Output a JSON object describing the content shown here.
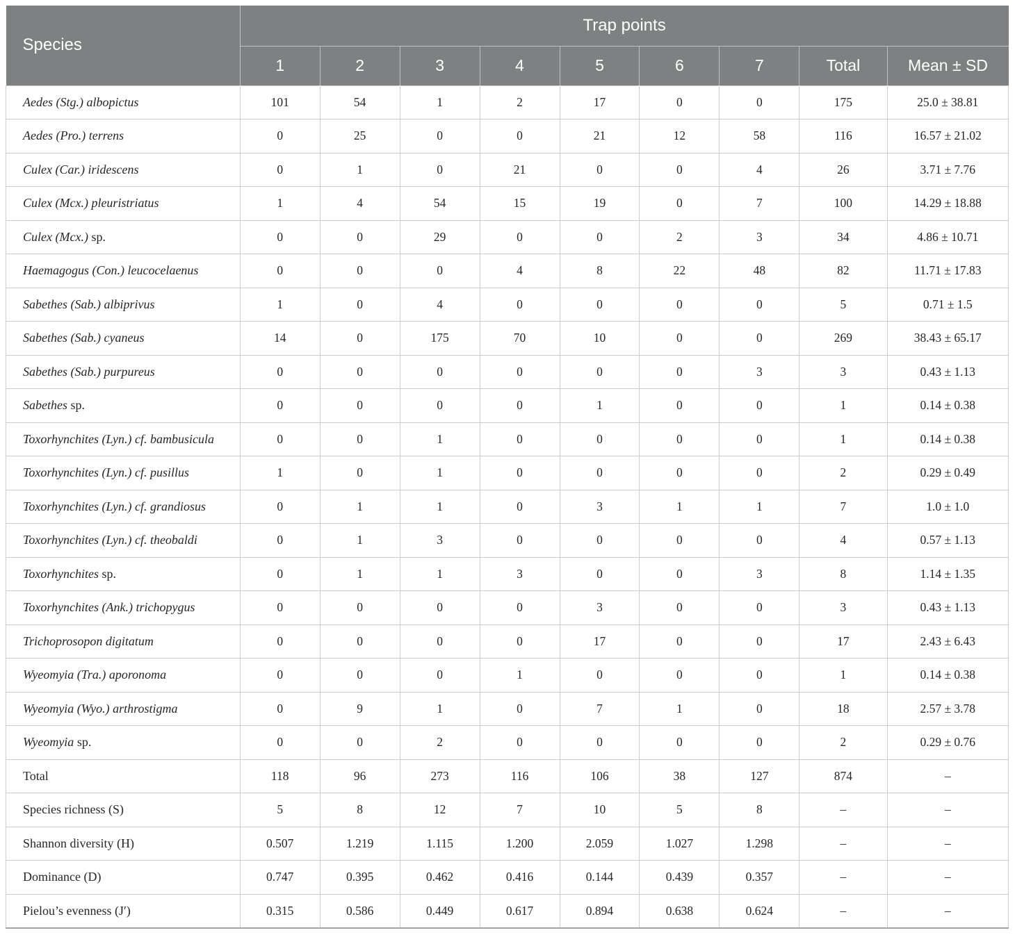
{
  "table": {
    "header": {
      "species_label": "Species",
      "trap_points_label": "Trap points",
      "trap_columns": [
        "1",
        "2",
        "3",
        "4",
        "5",
        "6",
        "7"
      ],
      "total_label": "Total",
      "mean_sd_label": "Mean ± SD"
    },
    "rows": [
      {
        "species_italic": "Aedes (Stg.) albopictus",
        "species_roman": "",
        "counts": [
          "101",
          "54",
          "1",
          "2",
          "17",
          "0",
          "0"
        ],
        "total": "175",
        "mean_sd": "25.0 ± 38.81"
      },
      {
        "species_italic": "Aedes (Pro.) terrens",
        "species_roman": "",
        "counts": [
          "0",
          "25",
          "0",
          "0",
          "21",
          "12",
          "58"
        ],
        "total": "116",
        "mean_sd": "16.57 ± 21.02"
      },
      {
        "species_italic": "Culex (Car.) iridescens",
        "species_roman": "",
        "counts": [
          "0",
          "1",
          "0",
          "21",
          "0",
          "0",
          "4"
        ],
        "total": "26",
        "mean_sd": "3.71 ± 7.76"
      },
      {
        "species_italic": "Culex (Mcx.) pleuristriatus",
        "species_roman": "",
        "counts": [
          "1",
          "4",
          "54",
          "15",
          "19",
          "0",
          "7"
        ],
        "total": "100",
        "mean_sd": "14.29 ± 18.88"
      },
      {
        "species_italic": "Culex (Mcx.)",
        "species_roman": "sp.",
        "counts": [
          "0",
          "0",
          "29",
          "0",
          "0",
          "2",
          "3"
        ],
        "total": "34",
        "mean_sd": "4.86 ± 10.71"
      },
      {
        "species_italic": "Haemagogus (Con.) leucocelaenus",
        "species_roman": "",
        "counts": [
          "0",
          "0",
          "0",
          "4",
          "8",
          "22",
          "48"
        ],
        "total": "82",
        "mean_sd": "11.71 ± 17.83"
      },
      {
        "species_italic": "Sabethes (Sab.) albiprivus",
        "species_roman": "",
        "counts": [
          "1",
          "0",
          "4",
          "0",
          "0",
          "0",
          "0"
        ],
        "total": "5",
        "mean_sd": "0.71 ± 1.5"
      },
      {
        "species_italic": "Sabethes (Sab.) cyaneus",
        "species_roman": "",
        "counts": [
          "14",
          "0",
          "175",
          "70",
          "10",
          "0",
          "0"
        ],
        "total": "269",
        "mean_sd": "38.43 ± 65.17"
      },
      {
        "species_italic": "Sabethes (Sab.) purpureus",
        "species_roman": "",
        "counts": [
          "0",
          "0",
          "0",
          "0",
          "0",
          "0",
          "3"
        ],
        "total": "3",
        "mean_sd": "0.43 ± 1.13"
      },
      {
        "species_italic": "Sabethes",
        "species_roman": "sp.",
        "counts": [
          "0",
          "0",
          "0",
          "0",
          "1",
          "0",
          "0"
        ],
        "total": "1",
        "mean_sd": "0.14 ± 0.38"
      },
      {
        "species_italic": "Toxorhynchites (Lyn.) cf. bambusicula",
        "species_roman": "",
        "counts": [
          "0",
          "0",
          "1",
          "0",
          "0",
          "0",
          "0"
        ],
        "total": "1",
        "mean_sd": "0.14 ± 0.38"
      },
      {
        "species_italic": "Toxorhynchites (Lyn.) cf. pusillus",
        "species_roman": "",
        "counts": [
          "1",
          "0",
          "1",
          "0",
          "0",
          "0",
          "0"
        ],
        "total": "2",
        "mean_sd": "0.29 ± 0.49"
      },
      {
        "species_italic": "Toxorhynchites (Lyn.) cf. grandiosus",
        "species_roman": "",
        "counts": [
          "0",
          "1",
          "1",
          "0",
          "3",
          "1",
          "1"
        ],
        "total": "7",
        "mean_sd": "1.0 ± 1.0"
      },
      {
        "species_italic": "Toxorhynchites (Lyn.) cf. theobaldi",
        "species_roman": "",
        "counts": [
          "0",
          "1",
          "3",
          "0",
          "0",
          "0",
          "0"
        ],
        "total": "4",
        "mean_sd": "0.57 ± 1.13"
      },
      {
        "species_italic": "Toxorhynchites",
        "species_roman": "sp.",
        "counts": [
          "0",
          "1",
          "1",
          "3",
          "0",
          "0",
          "3"
        ],
        "total": "8",
        "mean_sd": "1.14 ± 1.35"
      },
      {
        "species_italic": "Toxorhynchites (Ank.) trichopygus",
        "species_roman": "",
        "counts": [
          "0",
          "0",
          "0",
          "0",
          "3",
          "0",
          "0"
        ],
        "total": "3",
        "mean_sd": "0.43 ± 1.13"
      },
      {
        "species_italic": "Trichoprosopon digitatum",
        "species_roman": "",
        "counts": [
          "0",
          "0",
          "0",
          "0",
          "17",
          "0",
          "0"
        ],
        "total": "17",
        "mean_sd": "2.43 ± 6.43"
      },
      {
        "species_italic": "Wyeomyia (Tra.) aporonoma",
        "species_roman": "",
        "counts": [
          "0",
          "0",
          "0",
          "1",
          "0",
          "0",
          "0"
        ],
        "total": "1",
        "mean_sd": "0.14 ± 0.38"
      },
      {
        "species_italic": "Wyeomyia (Wyo.) arthrostigma",
        "species_roman": "",
        "counts": [
          "0",
          "9",
          "1",
          "0",
          "7",
          "1",
          "0"
        ],
        "total": "18",
        "mean_sd": "2.57 ± 3.78"
      },
      {
        "species_italic": "Wyeomyia",
        "species_roman": "sp.",
        "counts": [
          "0",
          "0",
          "2",
          "0",
          "0",
          "0",
          "0"
        ],
        "total": "2",
        "mean_sd": "0.29 ± 0.76"
      }
    ],
    "summary_rows": [
      {
        "label": "Total",
        "counts": [
          "118",
          "96",
          "273",
          "116",
          "106",
          "38",
          "127"
        ],
        "total": "874",
        "mean_sd": "–"
      },
      {
        "label": "Species richness (S)",
        "counts": [
          "5",
          "8",
          "12",
          "7",
          "10",
          "5",
          "8"
        ],
        "total": "–",
        "mean_sd": "–"
      },
      {
        "label": "Shannon diversity (H)",
        "counts": [
          "0.507",
          "1.219",
          "1.115",
          "1.200",
          "2.059",
          "1.027",
          "1.298"
        ],
        "total": "–",
        "mean_sd": "–"
      },
      {
        "label": "Dominance (D)",
        "counts": [
          "0.747",
          "0.395",
          "0.462",
          "0.416",
          "0.144",
          "0.439",
          "0.357"
        ],
        "total": "–",
        "mean_sd": "–"
      },
      {
        "label": "Pielou’s evenness (J′)",
        "counts": [
          "0.315",
          "0.586",
          "0.449",
          "0.617",
          "0.894",
          "0.638",
          "0.624"
        ],
        "total": "–",
        "mean_sd": "–"
      }
    ],
    "colors": {
      "header_bg": "#7e8182",
      "header_text": "#ffffff",
      "grid_line": "#cbcdcd",
      "body_text": "#262626"
    }
  }
}
